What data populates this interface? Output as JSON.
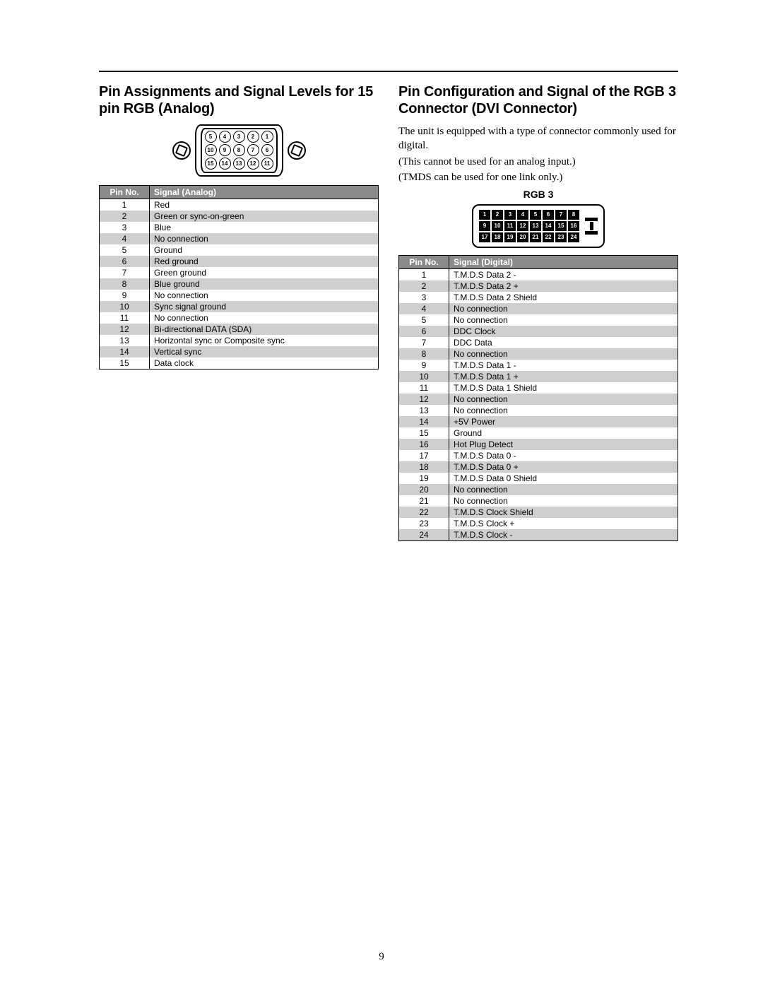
{
  "page_number": "9",
  "left": {
    "heading": "Pin Assignments and Signal Levels for 15 pin RGB (Analog)",
    "connector": {
      "rows": [
        [
          5,
          4,
          3,
          2,
          1
        ],
        [
          10,
          9,
          8,
          7,
          6
        ],
        [
          15,
          14,
          13,
          12,
          11
        ]
      ]
    },
    "table": {
      "head_pin": "Pin No.",
      "head_sig": "Signal (Analog)",
      "rows": [
        {
          "n": "1",
          "s": "Red"
        },
        {
          "n": "2",
          "s": "Green or sync-on-green"
        },
        {
          "n": "3",
          "s": "Blue"
        },
        {
          "n": "4",
          "s": "No connection"
        },
        {
          "n": "5",
          "s": "Ground"
        },
        {
          "n": "6",
          "s": "Red ground"
        },
        {
          "n": "7",
          "s": "Green ground"
        },
        {
          "n": "8",
          "s": "Blue ground"
        },
        {
          "n": "9",
          "s": "No connection"
        },
        {
          "n": "10",
          "s": "Sync signal ground"
        },
        {
          "n": "11",
          "s": "No connection"
        },
        {
          "n": "12",
          "s": "Bi-directional DATA (SDA)"
        },
        {
          "n": "13",
          "s": "Horizontal sync or Composite sync"
        },
        {
          "n": "14",
          "s": "Vertical sync"
        },
        {
          "n": "15",
          "s": "Data clock"
        }
      ]
    }
  },
  "right": {
    "heading": "Pin Configuration and Signal of the RGB 3 Connector (DVI Connector)",
    "body1": "The unit is equipped with a type of connector commonly used for digital.",
    "body2": "(This cannot be used for an analog input.)",
    "body3": "(TMDS can be used for one link only.)",
    "sublabel": "RGB 3",
    "connector": {
      "rows": [
        [
          1,
          2,
          3,
          4,
          5,
          6,
          7,
          8
        ],
        [
          9,
          10,
          11,
          12,
          13,
          14,
          15,
          16
        ],
        [
          17,
          18,
          19,
          20,
          21,
          22,
          23,
          24
        ]
      ]
    },
    "table": {
      "head_pin": "Pin No.",
      "head_sig": "Signal (Digital)",
      "rows": [
        {
          "n": "1",
          "s": "T.M.D.S Data 2 -"
        },
        {
          "n": "2",
          "s": "T.M.D.S Data 2 +"
        },
        {
          "n": "3",
          "s": "T.M.D.S Data 2 Shield"
        },
        {
          "n": "4",
          "s": "No connection"
        },
        {
          "n": "5",
          "s": "No connection"
        },
        {
          "n": "6",
          "s": "DDC Clock"
        },
        {
          "n": "7",
          "s": "DDC Data"
        },
        {
          "n": "8",
          "s": "No connection"
        },
        {
          "n": "9",
          "s": "T.M.D.S Data 1 -"
        },
        {
          "n": "10",
          "s": "T.M.D.S Data 1 +"
        },
        {
          "n": "11",
          "s": "T.M.D.S Data 1 Shield"
        },
        {
          "n": "12",
          "s": "No connection"
        },
        {
          "n": "13",
          "s": "No connection"
        },
        {
          "n": "14",
          "s": "+5V Power"
        },
        {
          "n": "15",
          "s": "Ground"
        },
        {
          "n": "16",
          "s": "Hot Plug Detect"
        },
        {
          "n": "17",
          "s": "T.M.D.S Data 0 -"
        },
        {
          "n": "18",
          "s": "T.M.D.S Data 0 +"
        },
        {
          "n": "19",
          "s": "T.M.D.S Data 0 Shield"
        },
        {
          "n": "20",
          "s": "No connection"
        },
        {
          "n": "21",
          "s": "No connection"
        },
        {
          "n": "22",
          "s": "T.M.D.S Clock Shield"
        },
        {
          "n": "23",
          "s": "T.M.D.S Clock +"
        },
        {
          "n": "24",
          "s": "T.M.D.S Clock -"
        }
      ]
    }
  },
  "colors": {
    "header_bg": "#8b8b8b",
    "alt_row": "#cfcfcf",
    "border": "#000000"
  }
}
